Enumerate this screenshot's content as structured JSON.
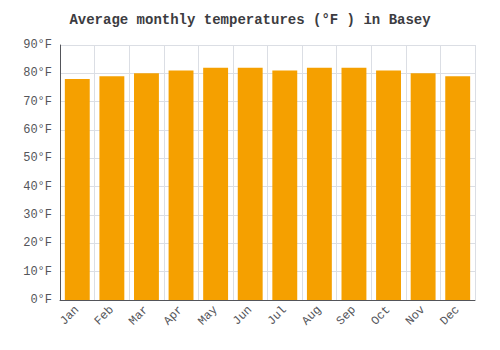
{
  "chart_data": {
    "type": "bar",
    "title": "Average monthly temperatures (°F ) in Basey",
    "categories": [
      "Jan",
      "Feb",
      "Mar",
      "Apr",
      "May",
      "Jun",
      "Jul",
      "Aug",
      "Sep",
      "Oct",
      "Nov",
      "Dec"
    ],
    "values": [
      78,
      79,
      80,
      81,
      82,
      82,
      81,
      82,
      82,
      81,
      80,
      79
    ],
    "color": "#F5A000",
    "ylim": [
      0,
      90
    ],
    "yticks": [
      {
        "value": 0,
        "label": "0°F"
      },
      {
        "value": 10,
        "label": "10°F"
      },
      {
        "value": 20,
        "label": "20°F"
      },
      {
        "value": 30,
        "label": "30°F"
      },
      {
        "value": 40,
        "label": "40°F"
      },
      {
        "value": 50,
        "label": "50°F"
      },
      {
        "value": 60,
        "label": "60°F"
      },
      {
        "value": 70,
        "label": "70°F"
      },
      {
        "value": 80,
        "label": "80°F"
      },
      {
        "value": 90,
        "label": "90°F"
      }
    ],
    "grid": true
  }
}
